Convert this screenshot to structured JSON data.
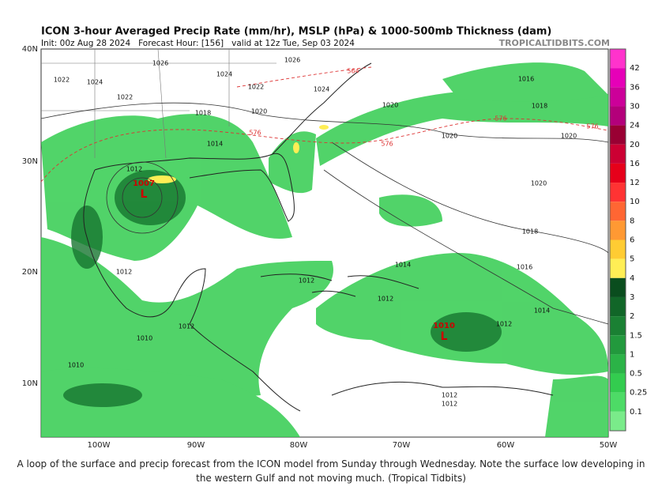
{
  "header": {
    "title": "ICON 3-hour Averaged Precip Rate (mm/hr), MSLP (hPa) & 1000-500mb Thickness (dam)",
    "init": "Init: 00z Aug 28 2024   Forecast Hour: [156]   valid at 12z Tue, Sep 03 2024",
    "brand": "TROPICALTIDBITS.COM"
  },
  "map": {
    "lat_labels": [
      "40N",
      "30N",
      "20N",
      "10N"
    ],
    "lon_labels": [
      "100W",
      "90W",
      "80W",
      "70W",
      "60W",
      "50W"
    ],
    "isobar_labels": [
      1026,
      1022,
      1024,
      1022,
      1026,
      1024,
      1022,
      1024,
      1020,
      1018,
      1014,
      1020,
      1016,
      1018,
      1020,
      1020,
      1020,
      1018,
      1016,
      1014,
      1014,
      1012,
      1012,
      1012,
      1012,
      1012,
      1010,
      1012,
      1012,
      1010,
      1012
    ],
    "thickness_labels": [
      564,
      576,
      576,
      576,
      576
    ],
    "lows": [
      {
        "pressure": 1007,
        "symbol": "L"
      },
      {
        "pressure": 1010,
        "symbol": "L"
      }
    ]
  },
  "colorbar": {
    "labels": [
      42,
      36,
      30,
      24,
      20,
      16,
      12,
      10,
      8,
      6,
      5,
      4,
      3,
      2,
      1.5,
      1,
      0.5,
      0.25,
      0.1
    ],
    "colors": [
      "#ff33cc",
      "#e600b8",
      "#cc0099",
      "#b3007a",
      "#990033",
      "#cc0033",
      "#e6001a",
      "#ff3333",
      "#ff6633",
      "#ff9933",
      "#ffcc33",
      "#ffee55",
      "#0a4d1e",
      "#116628",
      "#1a8033",
      "#22993d",
      "#2bb347",
      "#33cc4f",
      "#4ddb66",
      "#7aeb8a"
    ]
  },
  "caption": "A loop of the surface and precip forecast from the ICON model from Sunday through Wednesday. Note the surface low developing in the western Gulf and not moving much. (Tropical Tidbits)"
}
